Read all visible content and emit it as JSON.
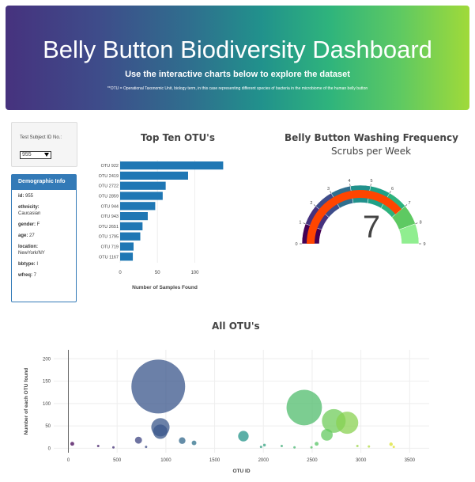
{
  "header": {
    "title": "Belly Button Biodiversity Dashboard",
    "subtitle": "Use the interactive charts below to explore the dataset",
    "note": "**OTU = Operational Taxonomic Unit, biology term, in this case representing different species of bacteria in the microbiome of the human belly button"
  },
  "selector": {
    "label": "Test Subject ID No.:",
    "value": "955"
  },
  "demographic": {
    "title": "Demographic Info",
    "rows": [
      {
        "key": "id:",
        "value": "955"
      },
      {
        "key": "ethnicity:",
        "value": "Caucasian"
      },
      {
        "key": "gender:",
        "value": "F"
      },
      {
        "key": "age:",
        "value": "27"
      },
      {
        "key": "location:",
        "value": "NewYork/NY"
      },
      {
        "key": "bbtype:",
        "value": "I"
      },
      {
        "key": "wfreq:",
        "value": "7"
      }
    ]
  },
  "chart_data": [
    {
      "type": "bar",
      "orientation": "horizontal",
      "title": "Top Ten OTU's",
      "xlabel": "Number of Samples Found",
      "categories": [
        "OTU 922",
        "OTU 2419",
        "OTU 2722",
        "OTU 2859",
        "OTU 944",
        "OTU 943",
        "OTU 2651",
        "OTU 1795",
        "OTU 719",
        "OTU 1167"
      ],
      "values": [
        138,
        91,
        61,
        57,
        47,
        37,
        30,
        27,
        18,
        17
      ],
      "xticks": [
        0,
        50,
        100
      ],
      "xlim": [
        0,
        145
      ],
      "color": "#1f77b4"
    },
    {
      "type": "gauge",
      "title": "Belly Button Washing Frequency",
      "subtitle": "Scrubs per Week",
      "value": 7,
      "range": [
        0,
        9
      ],
      "ticks": [
        0,
        1,
        2,
        3,
        4,
        5,
        6,
        7,
        8,
        9
      ],
      "bar_color": "#ff4500",
      "steps": [
        "#440154",
        "#46327e",
        "#3e4c8a",
        "#2f6f8e",
        "#21918c",
        "#1fa187",
        "#2db27d",
        "#5ec962",
        "#90ee90"
      ]
    },
    {
      "type": "scatter",
      "title": "All OTU's",
      "xlabel": "OTU ID",
      "ylabel": "Number of each OTU found",
      "xlim": [
        -150,
        3700
      ],
      "ylim": [
        -10,
        220
      ],
      "xticks": [
        0,
        500,
        1000,
        1500,
        2000,
        2500,
        3000,
        3500
      ],
      "yticks": [
        0,
        50,
        100,
        150,
        200
      ],
      "points": [
        {
          "x": 922,
          "y": 138
        },
        {
          "x": 2419,
          "y": 91
        },
        {
          "x": 2722,
          "y": 61
        },
        {
          "x": 2859,
          "y": 57
        },
        {
          "x": 944,
          "y": 47
        },
        {
          "x": 943,
          "y": 37
        },
        {
          "x": 2651,
          "y": 30
        },
        {
          "x": 1795,
          "y": 27
        },
        {
          "x": 719,
          "y": 18
        },
        {
          "x": 1167,
          "y": 17
        },
        {
          "x": 1289,
          "y": 12
        },
        {
          "x": 2546,
          "y": 10
        },
        {
          "x": 3309,
          "y": 9
        },
        {
          "x": 40,
          "y": 10
        },
        {
          "x": 2011,
          "y": 7
        },
        {
          "x": 2964,
          "y": 5
        },
        {
          "x": 2188,
          "y": 5
        },
        {
          "x": 3082,
          "y": 4
        },
        {
          "x": 306,
          "y": 5
        },
        {
          "x": 1976,
          "y": 3
        },
        {
          "x": 3337,
          "y": 3
        },
        {
          "x": 462,
          "y": 2
        },
        {
          "x": 797,
          "y": 3
        },
        {
          "x": 2493,
          "y": 2
        },
        {
          "x": 2319,
          "y": 2
        }
      ]
    }
  ]
}
